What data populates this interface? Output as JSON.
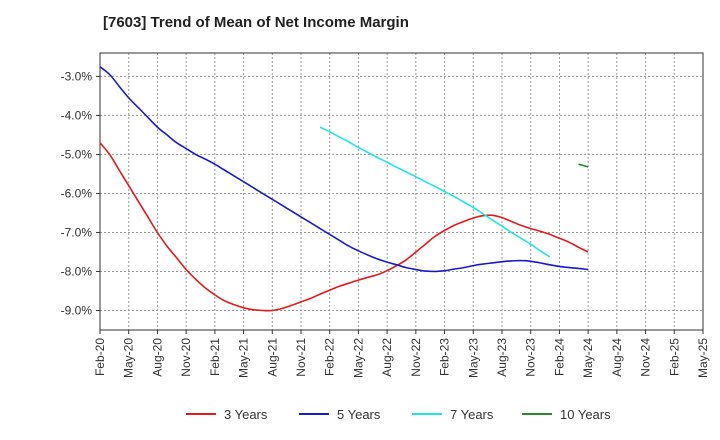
{
  "title": "[7603]  Trend of Mean of Net Income Margin",
  "chart_data": {
    "type": "line",
    "title": "[7603]  Trend of Mean of Net Income Margin",
    "xlabel": "",
    "ylabel": "",
    "x_ticks": [
      "Feb-20",
      "May-20",
      "Aug-20",
      "Nov-20",
      "Feb-21",
      "May-21",
      "Aug-21",
      "Nov-21",
      "Feb-22",
      "May-22",
      "Aug-22",
      "Nov-22",
      "Feb-23",
      "May-23",
      "Aug-23",
      "Nov-23",
      "Feb-24",
      "May-24",
      "Aug-24",
      "Nov-24",
      "Feb-25",
      "May-25"
    ],
    "y_ticks": [
      "-3.0%",
      "-4.0%",
      "-5.0%",
      "-6.0%",
      "-7.0%",
      "-8.0%",
      "-9.0%"
    ],
    "y_tick_values": [
      -3.0,
      -4.0,
      -5.0,
      -6.0,
      -7.0,
      -8.0,
      -9.0
    ],
    "ylim": [
      -9.5,
      -2.4
    ],
    "grid": true,
    "legend_position": "bottom",
    "series": [
      {
        "name": "3 Years",
        "color": "#e31a1c",
        "points": [
          [
            "Feb-20",
            -4.7
          ],
          [
            "Mar-20",
            -5.0
          ],
          [
            "Apr-20",
            -5.4
          ],
          [
            "May-20",
            -5.8
          ],
          [
            "Jun-20",
            -6.2
          ],
          [
            "Jul-20",
            -6.6
          ],
          [
            "Aug-20",
            -7.0
          ],
          [
            "Sep-20",
            -7.35
          ],
          [
            "Oct-20",
            -7.65
          ],
          [
            "Nov-20",
            -7.95
          ],
          [
            "Dec-20",
            -8.2
          ],
          [
            "Jan-21",
            -8.42
          ],
          [
            "Feb-21",
            -8.6
          ],
          [
            "Mar-21",
            -8.75
          ],
          [
            "Apr-21",
            -8.85
          ],
          [
            "May-21",
            -8.93
          ],
          [
            "Jun-21",
            -8.98
          ],
          [
            "Jul-21",
            -9.0
          ],
          [
            "Aug-21",
            -9.0
          ],
          [
            "Sep-21",
            -8.95
          ],
          [
            "Oct-21",
            -8.87
          ],
          [
            "Nov-21",
            -8.78
          ],
          [
            "Dec-21",
            -8.69
          ],
          [
            "Jan-22",
            -8.58
          ],
          [
            "Feb-22",
            -8.48
          ],
          [
            "Mar-22",
            -8.38
          ],
          [
            "Apr-22",
            -8.3
          ],
          [
            "May-22",
            -8.22
          ],
          [
            "Jun-22",
            -8.15
          ],
          [
            "Jul-22",
            -8.08
          ],
          [
            "Aug-22",
            -7.98
          ],
          [
            "Sep-22",
            -7.85
          ],
          [
            "Oct-22",
            -7.7
          ],
          [
            "Nov-22",
            -7.5
          ],
          [
            "Dec-22",
            -7.3
          ],
          [
            "Jan-23",
            -7.1
          ],
          [
            "Feb-23",
            -6.95
          ],
          [
            "Mar-23",
            -6.82
          ],
          [
            "Apr-23",
            -6.72
          ],
          [
            "May-23",
            -6.63
          ],
          [
            "Jun-23",
            -6.57
          ],
          [
            "Jul-23",
            -6.56
          ],
          [
            "Aug-23",
            -6.62
          ],
          [
            "Sep-23",
            -6.72
          ],
          [
            "Oct-23",
            -6.82
          ],
          [
            "Nov-23",
            -6.9
          ],
          [
            "Dec-23",
            -6.97
          ],
          [
            "Jan-24",
            -7.05
          ],
          [
            "Feb-24",
            -7.15
          ],
          [
            "Mar-24",
            -7.25
          ],
          [
            "Apr-24",
            -7.38
          ],
          [
            "May-24",
            -7.5
          ]
        ]
      },
      {
        "name": "5 Years",
        "color": "#1a1acd",
        "points": [
          [
            "Feb-20",
            -2.75
          ],
          [
            "Mar-20",
            -2.95
          ],
          [
            "Apr-20",
            -3.25
          ],
          [
            "May-20",
            -3.55
          ],
          [
            "Jun-20",
            -3.8
          ],
          [
            "Jul-20",
            -4.05
          ],
          [
            "Aug-20",
            -4.3
          ],
          [
            "Sep-20",
            -4.5
          ],
          [
            "Oct-20",
            -4.7
          ],
          [
            "Nov-20",
            -4.85
          ],
          [
            "Dec-20",
            -5.0
          ],
          [
            "Jan-21",
            -5.12
          ],
          [
            "Feb-21",
            -5.25
          ],
          [
            "Mar-21",
            -5.4
          ],
          [
            "Apr-21",
            -5.55
          ],
          [
            "May-21",
            -5.7
          ],
          [
            "Jun-21",
            -5.85
          ],
          [
            "Jul-21",
            -6.0
          ],
          [
            "Aug-21",
            -6.15
          ],
          [
            "Sep-21",
            -6.3
          ],
          [
            "Oct-21",
            -6.45
          ],
          [
            "Nov-21",
            -6.6
          ],
          [
            "Dec-21",
            -6.75
          ],
          [
            "Jan-22",
            -6.9
          ],
          [
            "Feb-22",
            -7.05
          ],
          [
            "Mar-22",
            -7.2
          ],
          [
            "Apr-22",
            -7.35
          ],
          [
            "May-22",
            -7.47
          ],
          [
            "Jun-22",
            -7.58
          ],
          [
            "Jul-22",
            -7.68
          ],
          [
            "Aug-22",
            -7.76
          ],
          [
            "Sep-22",
            -7.83
          ],
          [
            "Oct-22",
            -7.9
          ],
          [
            "Nov-22",
            -7.95
          ],
          [
            "Dec-22",
            -7.99
          ],
          [
            "Jan-23",
            -8.0
          ],
          [
            "Feb-23",
            -7.98
          ],
          [
            "Mar-23",
            -7.94
          ],
          [
            "Apr-23",
            -7.9
          ],
          [
            "May-23",
            -7.85
          ],
          [
            "Jun-23",
            -7.81
          ],
          [
            "Jul-23",
            -7.78
          ],
          [
            "Aug-23",
            -7.75
          ],
          [
            "Sep-23",
            -7.73
          ],
          [
            "Oct-23",
            -7.72
          ],
          [
            "Nov-23",
            -7.74
          ],
          [
            "Dec-23",
            -7.78
          ],
          [
            "Jan-24",
            -7.83
          ],
          [
            "Feb-24",
            -7.87
          ],
          [
            "Mar-24",
            -7.9
          ],
          [
            "Apr-24",
            -7.92
          ],
          [
            "May-24",
            -7.95
          ]
        ]
      },
      {
        "name": "7 Years",
        "color": "#22e6e6",
        "points": [
          [
            "Jan-22",
            -4.3
          ],
          [
            "Feb-22",
            -4.42
          ],
          [
            "Mar-22",
            -4.55
          ],
          [
            "Apr-22",
            -4.68
          ],
          [
            "May-22",
            -4.82
          ],
          [
            "Jun-22",
            -4.95
          ],
          [
            "Jul-22",
            -5.08
          ],
          [
            "Aug-22",
            -5.2
          ],
          [
            "Sep-22",
            -5.33
          ],
          [
            "Oct-22",
            -5.45
          ],
          [
            "Nov-22",
            -5.57
          ],
          [
            "Dec-22",
            -5.7
          ],
          [
            "Jan-23",
            -5.82
          ],
          [
            "Feb-23",
            -5.95
          ],
          [
            "Mar-23",
            -6.08
          ],
          [
            "Apr-23",
            -6.22
          ],
          [
            "May-23",
            -6.36
          ],
          [
            "Jun-23",
            -6.52
          ],
          [
            "Jul-23",
            -6.68
          ],
          [
            "Aug-23",
            -6.84
          ],
          [
            "Sep-23",
            -7.0
          ],
          [
            "Oct-23",
            -7.15
          ],
          [
            "Nov-23",
            -7.3
          ],
          [
            "Dec-23",
            -7.47
          ],
          [
            "Jan-24",
            -7.63
          ]
        ]
      },
      {
        "name": "10 Years",
        "color": "#2a8a2a",
        "points": [
          [
            "Apr-24",
            -5.25
          ],
          [
            "May-24",
            -5.32
          ]
        ]
      }
    ]
  }
}
